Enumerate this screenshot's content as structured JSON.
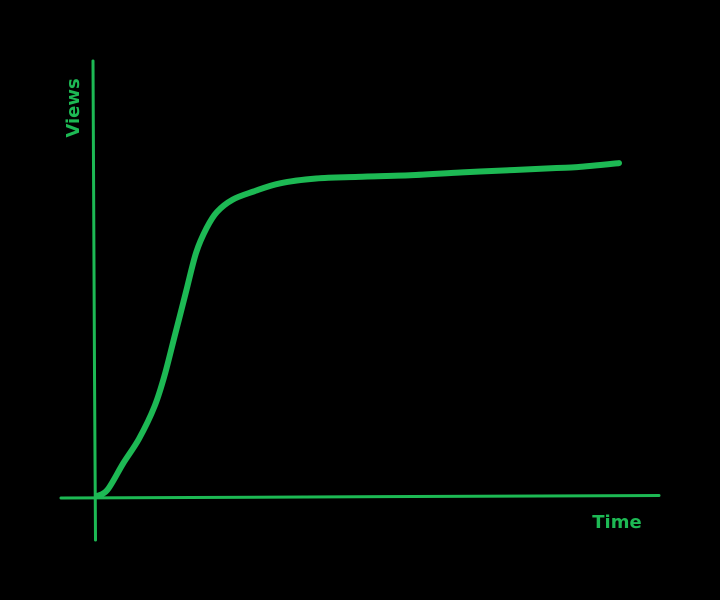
{
  "chart_data": {
    "type": "line",
    "title": "",
    "xlabel": "Time",
    "ylabel": "Views",
    "grid": false,
    "legend": "none",
    "xlim": [
      0,
      100
    ],
    "ylim": [
      0,
      100
    ],
    "series": [
      {
        "color": "#1db954",
        "points": [
          [
            0,
            0
          ],
          [
            2,
            1.5
          ],
          [
            5,
            8
          ],
          [
            8,
            14
          ],
          [
            11,
            22
          ],
          [
            13,
            30
          ],
          [
            15,
            40
          ],
          [
            17,
            50
          ],
          [
            19,
            60
          ],
          [
            21,
            66
          ],
          [
            23,
            70
          ],
          [
            26,
            73
          ],
          [
            30,
            75
          ],
          [
            35,
            77
          ],
          [
            42,
            78.2
          ],
          [
            50,
            78.6
          ],
          [
            60,
            79
          ],
          [
            70,
            79.7
          ],
          [
            80,
            80.3
          ],
          [
            88,
            80.8
          ],
          [
            92,
            81
          ],
          [
            100,
            82
          ]
        ]
      }
    ]
  },
  "colors": {
    "background": "#000000",
    "line": "#1db954"
  }
}
